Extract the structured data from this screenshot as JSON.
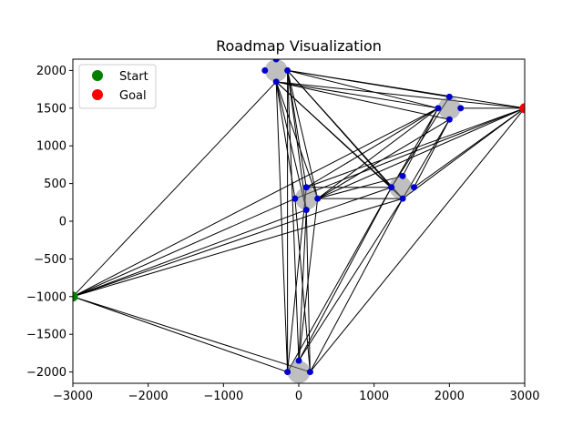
{
  "chart_data": {
    "type": "scatter",
    "title": "Roadmap Visualization",
    "xlabel": "",
    "ylabel": "",
    "xlim": [
      -3000,
      3000
    ],
    "ylim": [
      -2150,
      2150
    ],
    "x_ticks": [
      -3000,
      -2000,
      -1000,
      0,
      1000,
      2000,
      3000
    ],
    "y_ticks": [
      -2000,
      -1500,
      -1000,
      -500,
      0,
      500,
      1000,
      1500,
      2000
    ],
    "x_tick_labels": [
      "−3000",
      "−2000",
      "−1000",
      "0",
      "1000",
      "2000",
      "3000"
    ],
    "y_tick_labels": [
      "−2000",
      "−1500",
      "−1000",
      "−500",
      "0",
      "500",
      "1000",
      "1500",
      "2000"
    ],
    "grid": false,
    "legend": {
      "placement": "top-left",
      "entries": [
        {
          "label": "Start",
          "color": "#008000"
        },
        {
          "label": "Goal",
          "color": "#ff0000"
        }
      ]
    },
    "start": {
      "x": -3000,
      "y": -1000
    },
    "goal": {
      "x": 3000,
      "y": 1500
    },
    "obstacles": [
      {
        "x": -300,
        "y": 2000,
        "r": 150
      },
      {
        "x": 2000,
        "y": 1500,
        "r": 150
      },
      {
        "x": 1350,
        "y": 450,
        "r": 150
      },
      {
        "x": 100,
        "y": 300,
        "r": 150
      },
      {
        "x": 0,
        "y": -2000,
        "r": 150
      }
    ],
    "nodes": [
      {
        "x": -300,
        "y": 2150
      },
      {
        "x": -450,
        "y": 2000
      },
      {
        "x": -150,
        "y": 2000
      },
      {
        "x": -300,
        "y": 1850
      },
      {
        "x": 2000,
        "y": 1650
      },
      {
        "x": 1850,
        "y": 1500
      },
      {
        "x": 2150,
        "y": 1500
      },
      {
        "x": 2000,
        "y": 1350
      },
      {
        "x": 1380,
        "y": 600
      },
      {
        "x": 1230,
        "y": 450
      },
      {
        "x": 1530,
        "y": 450
      },
      {
        "x": 1380,
        "y": 300
      },
      {
        "x": 100,
        "y": 450
      },
      {
        "x": -50,
        "y": 300
      },
      {
        "x": 250,
        "y": 300
      },
      {
        "x": 100,
        "y": 150
      },
      {
        "x": 0,
        "y": -1850
      },
      {
        "x": -150,
        "y": -2000
      },
      {
        "x": 150,
        "y": -2000
      }
    ],
    "edges": [
      [
        [
          -3000,
          -1000
        ],
        [
          -300,
          1850
        ]
      ],
      [
        [
          -3000,
          -1000
        ],
        [
          1230,
          450
        ]
      ],
      [
        [
          -3000,
          -1000
        ],
        [
          -50,
          300
        ]
      ],
      [
        [
          -3000,
          -1000
        ],
        [
          100,
          150
        ]
      ],
      [
        [
          -3000,
          -1000
        ],
        [
          -150,
          -2000
        ]
      ],
      [
        [
          -3000,
          -1000
        ],
        [
          150,
          -2000
        ]
      ],
      [
        [
          -3000,
          -1000
        ],
        [
          1850,
          1500
        ]
      ],
      [
        [
          -3000,
          -1000
        ],
        [
          1380,
          300
        ]
      ],
      [
        [
          -300,
          1850
        ],
        [
          -150,
          -2000
        ]
      ],
      [
        [
          -300,
          1850
        ],
        [
          -50,
          300
        ]
      ],
      [
        [
          -300,
          1850
        ],
        [
          1230,
          450
        ]
      ],
      [
        [
          -300,
          1850
        ],
        [
          1850,
          1500
        ]
      ],
      [
        [
          -300,
          1850
        ],
        [
          1380,
          300
        ]
      ],
      [
        [
          -150,
          2000
        ],
        [
          2000,
          1650
        ]
      ],
      [
        [
          -150,
          2000
        ],
        [
          1850,
          1500
        ]
      ],
      [
        [
          -150,
          2000
        ],
        [
          1230,
          450
        ]
      ],
      [
        [
          -150,
          2000
        ],
        [
          1380,
          300
        ]
      ],
      [
        [
          -150,
          2000
        ],
        [
          250,
          300
        ]
      ],
      [
        [
          -150,
          2000
        ],
        [
          100,
          150
        ]
      ],
      [
        [
          -150,
          2000
        ],
        [
          3000,
          1500
        ]
      ],
      [
        [
          -150,
          2000
        ],
        [
          0,
          -1850
        ]
      ],
      [
        [
          -150,
          2000
        ],
        [
          100,
          450
        ]
      ],
      [
        [
          -300,
          1850
        ],
        [
          2000,
          1350
        ]
      ],
      [
        [
          -300,
          1850
        ],
        [
          3000,
          1500
        ]
      ],
      [
        [
          1850,
          1500
        ],
        [
          100,
          450
        ]
      ],
      [
        [
          1850,
          1500
        ],
        [
          250,
          300
        ]
      ],
      [
        [
          1850,
          1500
        ],
        [
          1380,
          600
        ]
      ],
      [
        [
          1850,
          1500
        ],
        [
          1230,
          450
        ]
      ],
      [
        [
          2000,
          1350
        ],
        [
          1380,
          300
        ]
      ],
      [
        [
          2000,
          1350
        ],
        [
          250,
          300
        ]
      ],
      [
        [
          2000,
          1350
        ],
        [
          1530,
          450
        ]
      ],
      [
        [
          2150,
          1500
        ],
        [
          3000,
          1500
        ]
      ],
      [
        [
          2000,
          1650
        ],
        [
          1230,
          450
        ]
      ],
      [
        [
          3000,
          1500
        ],
        [
          100,
          450
        ]
      ],
      [
        [
          3000,
          1500
        ],
        [
          250,
          300
        ]
      ],
      [
        [
          3000,
          1500
        ],
        [
          1530,
          450
        ]
      ],
      [
        [
          3000,
          1500
        ],
        [
          1380,
          300
        ]
      ],
      [
        [
          3000,
          1500
        ],
        [
          150,
          -2000
        ]
      ],
      [
        [
          3000,
          1500
        ],
        [
          -50,
          300
        ]
      ],
      [
        [
          100,
          450
        ],
        [
          1230,
          450
        ]
      ],
      [
        [
          250,
          300
        ],
        [
          1380,
          300
        ]
      ],
      [
        [
          250,
          300
        ],
        [
          1380,
          600
        ]
      ],
      [
        [
          1230,
          450
        ],
        [
          -150,
          -2000
        ]
      ],
      [
        [
          1230,
          450
        ],
        [
          0,
          -1850
        ]
      ],
      [
        [
          1380,
          300
        ],
        [
          150,
          -2000
        ]
      ],
      [
        [
          1380,
          300
        ],
        [
          0,
          -1850
        ]
      ],
      [
        [
          100,
          150
        ],
        [
          0,
          -1850
        ]
      ],
      [
        [
          -50,
          300
        ],
        [
          150,
          -2000
        ]
      ],
      [
        [
          100,
          450
        ],
        [
          -150,
          -2000
        ]
      ],
      [
        [
          250,
          300
        ],
        [
          0,
          -1850
        ]
      ],
      [
        [
          100,
          150
        ],
        [
          150,
          -2000
        ]
      ],
      [
        [
          -150,
          2000
        ],
        [
          -150,
          -2000
        ]
      ],
      [
        [
          -300,
          1850
        ],
        [
          250,
          300
        ]
      ],
      [
        [
          -300,
          1850
        ],
        [
          100,
          150
        ]
      ]
    ]
  }
}
